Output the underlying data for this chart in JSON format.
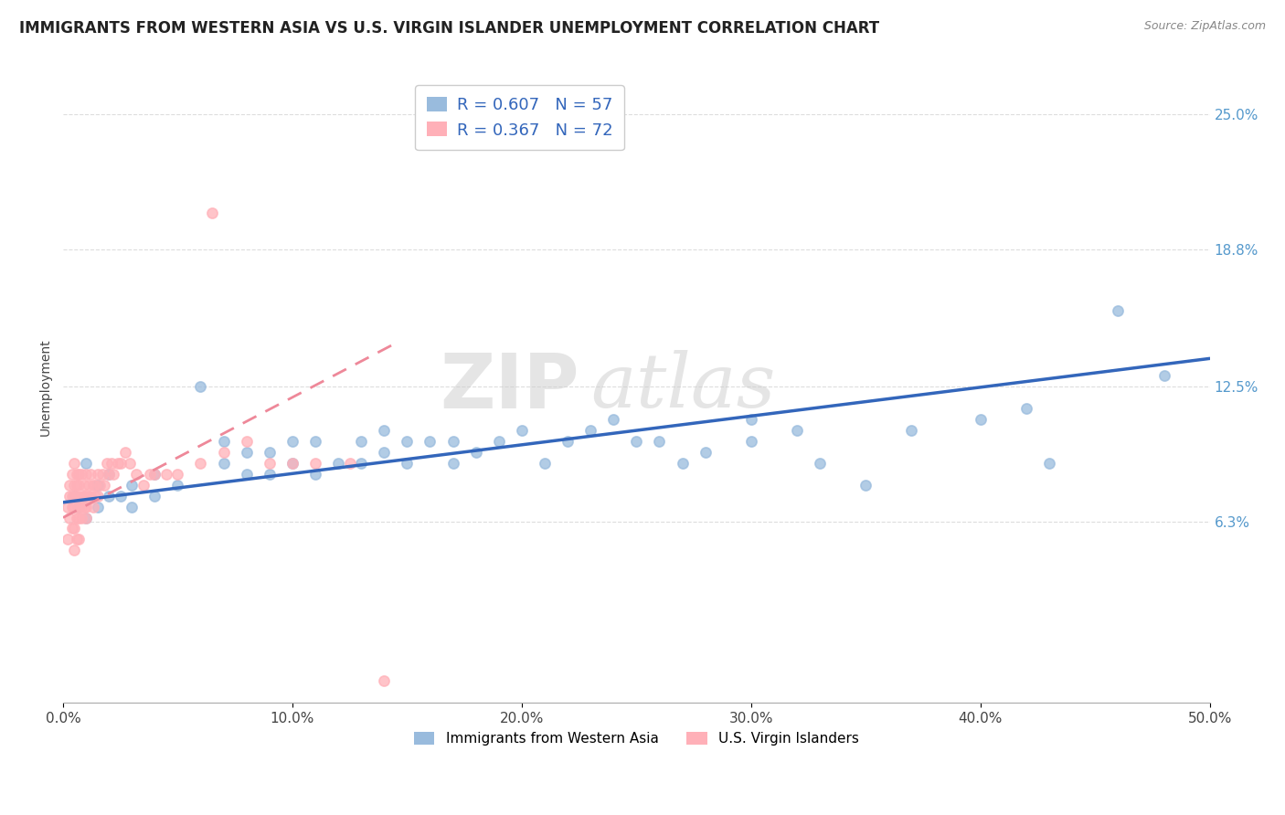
{
  "title": "IMMIGRANTS FROM WESTERN ASIA VS U.S. VIRGIN ISLANDER UNEMPLOYMENT CORRELATION CHART",
  "source_text": "Source: ZipAtlas.com",
  "ylabel": "Unemployment",
  "xlim": [
    0.0,
    0.5
  ],
  "ylim": [
    -0.02,
    0.27
  ],
  "yticks": [
    0.063,
    0.125,
    0.188,
    0.25
  ],
  "ytick_labels": [
    "6.3%",
    "12.5%",
    "18.8%",
    "25.0%"
  ],
  "xticks": [
    0.0,
    0.1,
    0.2,
    0.3,
    0.4,
    0.5
  ],
  "xtick_labels": [
    "0.0%",
    "10.0%",
    "20.0%",
    "30.0%",
    "40.0%",
    "50.0%"
  ],
  "watermark_zip": "ZIP",
  "watermark_atlas": "atlas",
  "legend_R1": "R = 0.607",
  "legend_N1": "N = 57",
  "legend_R2": "R = 0.367",
  "legend_N2": "N = 72",
  "color_blue": "#99BBDD",
  "color_pink": "#FFB0B8",
  "trendline_blue": "#3366BB",
  "trendline_pink": "#EE8899",
  "background_color": "#FFFFFF",
  "grid_color": "#DDDDDD",
  "blue_scatter_x": [
    0.005,
    0.007,
    0.01,
    0.01,
    0.015,
    0.015,
    0.02,
    0.02,
    0.025,
    0.03,
    0.03,
    0.04,
    0.04,
    0.05,
    0.06,
    0.07,
    0.07,
    0.08,
    0.08,
    0.09,
    0.09,
    0.1,
    0.1,
    0.11,
    0.11,
    0.12,
    0.13,
    0.13,
    0.14,
    0.14,
    0.15,
    0.15,
    0.16,
    0.17,
    0.17,
    0.18,
    0.19,
    0.2,
    0.21,
    0.22,
    0.23,
    0.24,
    0.25,
    0.26,
    0.27,
    0.28,
    0.3,
    0.3,
    0.32,
    0.33,
    0.35,
    0.37,
    0.4,
    0.42,
    0.43,
    0.46,
    0.48
  ],
  "blue_scatter_y": [
    0.075,
    0.07,
    0.065,
    0.09,
    0.07,
    0.08,
    0.075,
    0.085,
    0.075,
    0.07,
    0.08,
    0.075,
    0.085,
    0.08,
    0.125,
    0.09,
    0.1,
    0.085,
    0.095,
    0.085,
    0.095,
    0.09,
    0.1,
    0.085,
    0.1,
    0.09,
    0.09,
    0.1,
    0.095,
    0.105,
    0.09,
    0.1,
    0.1,
    0.09,
    0.1,
    0.095,
    0.1,
    0.105,
    0.09,
    0.1,
    0.105,
    0.11,
    0.1,
    0.1,
    0.09,
    0.095,
    0.1,
    0.11,
    0.105,
    0.09,
    0.08,
    0.105,
    0.11,
    0.115,
    0.09,
    0.16,
    0.13
  ],
  "pink_scatter_x": [
    0.002,
    0.002,
    0.003,
    0.003,
    0.003,
    0.004,
    0.004,
    0.004,
    0.004,
    0.005,
    0.005,
    0.005,
    0.005,
    0.005,
    0.005,
    0.006,
    0.006,
    0.006,
    0.006,
    0.006,
    0.007,
    0.007,
    0.007,
    0.007,
    0.007,
    0.008,
    0.008,
    0.008,
    0.008,
    0.009,
    0.009,
    0.009,
    0.01,
    0.01,
    0.01,
    0.01,
    0.011,
    0.011,
    0.012,
    0.012,
    0.013,
    0.013,
    0.014,
    0.014,
    0.015,
    0.015,
    0.016,
    0.017,
    0.018,
    0.019,
    0.02,
    0.021,
    0.022,
    0.024,
    0.025,
    0.027,
    0.029,
    0.032,
    0.035,
    0.038,
    0.04,
    0.045,
    0.05,
    0.06,
    0.065,
    0.07,
    0.08,
    0.09,
    0.1,
    0.11,
    0.125,
    0.14
  ],
  "pink_scatter_y": [
    0.055,
    0.07,
    0.065,
    0.075,
    0.08,
    0.06,
    0.07,
    0.075,
    0.085,
    0.05,
    0.06,
    0.07,
    0.075,
    0.08,
    0.09,
    0.055,
    0.065,
    0.075,
    0.08,
    0.085,
    0.055,
    0.065,
    0.07,
    0.08,
    0.085,
    0.065,
    0.07,
    0.075,
    0.085,
    0.07,
    0.075,
    0.08,
    0.065,
    0.07,
    0.075,
    0.085,
    0.075,
    0.08,
    0.075,
    0.085,
    0.07,
    0.08,
    0.075,
    0.08,
    0.075,
    0.085,
    0.08,
    0.085,
    0.08,
    0.09,
    0.085,
    0.09,
    0.085,
    0.09,
    0.09,
    0.095,
    0.09,
    0.085,
    0.08,
    0.085,
    0.085,
    0.085,
    0.085,
    0.09,
    0.205,
    0.095,
    0.1,
    0.09,
    0.09,
    0.09,
    0.09,
    -0.01
  ],
  "blue_trend_x0": 0.0,
  "blue_trend_x1": 0.5,
  "blue_trend_y0": 0.072,
  "blue_trend_y1": 0.138,
  "pink_trend_x0": 0.0,
  "pink_trend_x1": 0.145,
  "pink_trend_y0": 0.065,
  "pink_trend_y1": 0.145,
  "title_fontsize": 12,
  "axis_label_fontsize": 10,
  "tick_fontsize": 11,
  "legend_fontsize": 13,
  "marker_size": 65
}
